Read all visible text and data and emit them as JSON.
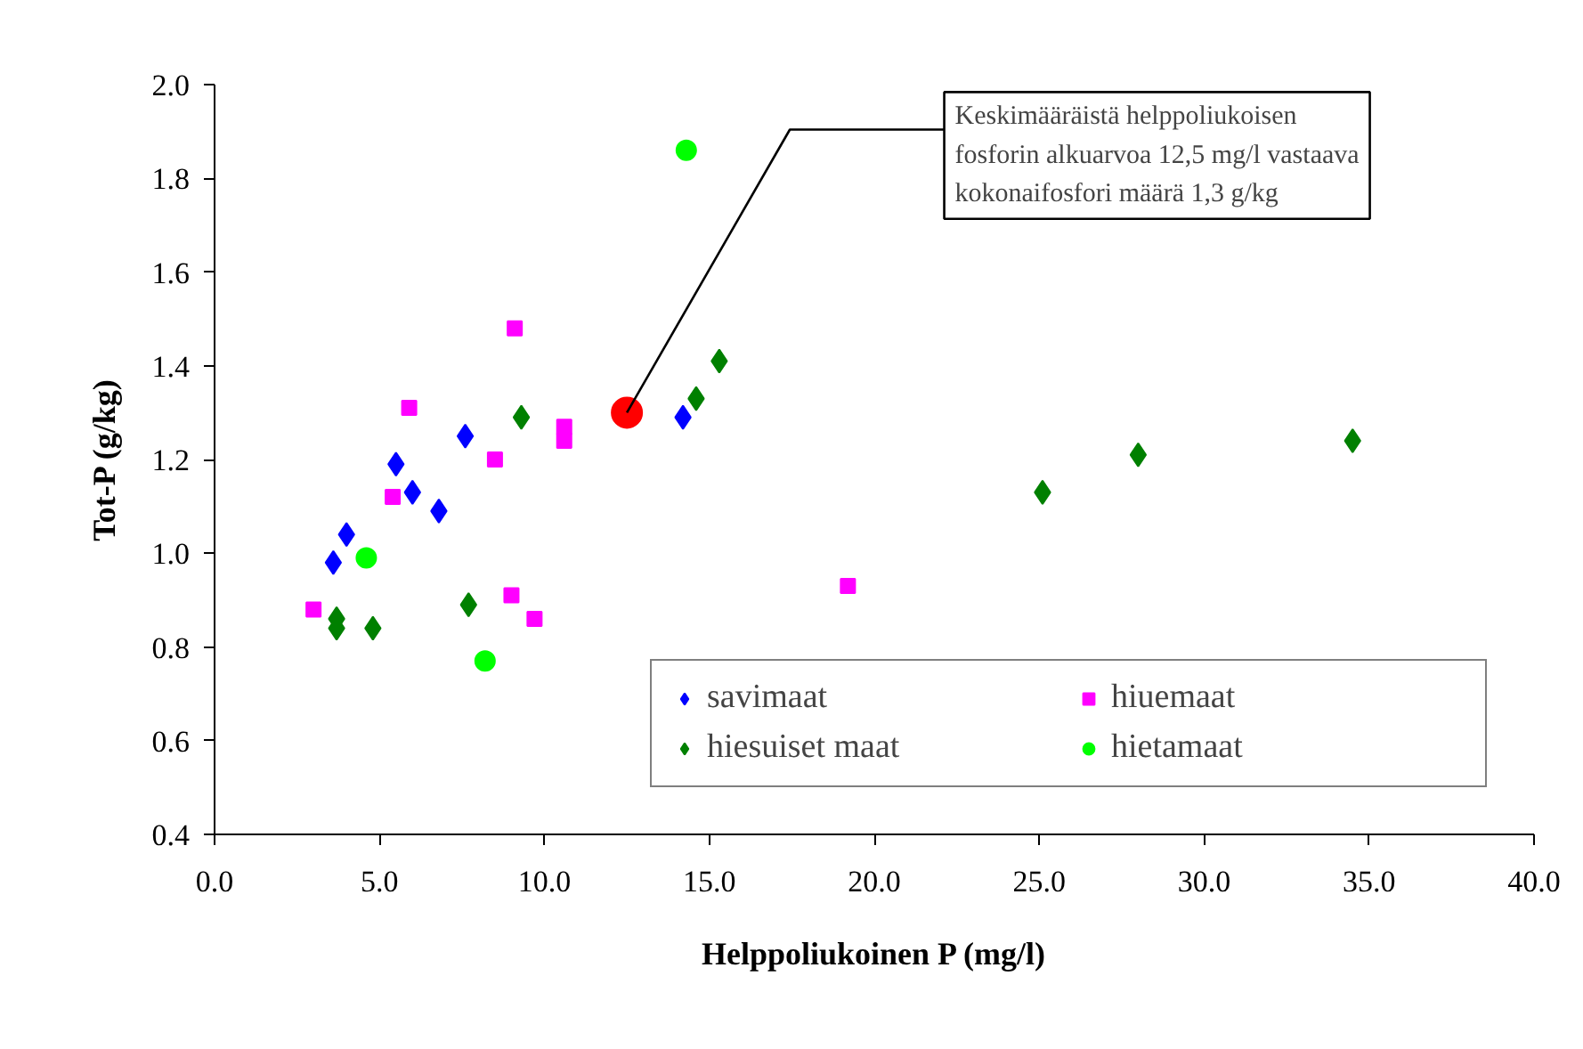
{
  "chart_data": {
    "type": "scatter",
    "xlabel": "Helppoliukoinen P (mg/l)",
    "ylabel": "Tot-P (g/kg)",
    "xlim": [
      0,
      40
    ],
    "xticks": [
      {
        "value": 0,
        "label": "0.0"
      },
      {
        "value": 5,
        "label": "5.0"
      },
      {
        "value": 10,
        "label": "10.0"
      },
      {
        "value": 15,
        "label": "15.0"
      },
      {
        "value": 20,
        "label": "20.0"
      },
      {
        "value": 25,
        "label": "25.0"
      },
      {
        "value": 30,
        "label": "30.0"
      },
      {
        "value": 35,
        "label": "35.0"
      },
      {
        "value": 40,
        "label": "40.0"
      }
    ],
    "ylim": [
      0.4,
      2.0
    ],
    "yticks": [
      {
        "value": 0.4,
        "label": "0.4"
      },
      {
        "value": 0.6,
        "label": "0.6"
      },
      {
        "value": 0.8,
        "label": "0.8"
      },
      {
        "value": 1.0,
        "label": "1.0"
      },
      {
        "value": 1.2,
        "label": "1.2"
      },
      {
        "value": 1.4,
        "label": "1.4"
      },
      {
        "value": 1.6,
        "label": "1.6"
      },
      {
        "value": 1.8,
        "label": "1.8"
      },
      {
        "value": 2.0,
        "label": "2.0"
      }
    ],
    "grid": false,
    "legend": "bottom right",
    "series": [
      {
        "name": "savimaat",
        "color": "#0000ff",
        "marker": "diamond",
        "x": [
          7.6,
          5.5,
          6.0,
          6.8,
          4.0,
          3.6,
          14.2
        ],
        "values": [
          1.25,
          1.19,
          1.13,
          1.09,
          1.04,
          0.98,
          1.29
        ]
      },
      {
        "name": "hiuemaat",
        "color": "#ff00ff",
        "marker": "square",
        "x": [
          9.1,
          5.9,
          8.5,
          10.6,
          10.6,
          5.4,
          3.0,
          9.0,
          9.7,
          19.2
        ],
        "values": [
          1.48,
          1.31,
          1.2,
          1.27,
          1.24,
          1.12,
          0.88,
          0.91,
          0.86,
          0.93
        ]
      },
      {
        "name": "hiesuiset maat",
        "color": "#008000",
        "marker": "diamond",
        "x": [
          9.3,
          3.7,
          3.7,
          4.8,
          7.7,
          14.6,
          15.3,
          25.1,
          28.0,
          34.5
        ],
        "values": [
          1.29,
          0.86,
          0.84,
          0.84,
          0.89,
          1.33,
          1.41,
          1.13,
          1.21,
          1.24
        ]
      },
      {
        "name": "hietamaat",
        "color": "#00ff00",
        "marker": "circle",
        "x": [
          4.6,
          8.2,
          14.3
        ],
        "values": [
          0.99,
          0.77,
          1.86
        ]
      },
      {
        "color": "#ff0000",
        "marker": "circle",
        "x": [
          12.5
        ],
        "values": [
          1.3
        ]
      }
    ],
    "annotations": [
      {
        "text": "Keskimääräistä helppoliukoisen\nfosforin alkuarvoa 12,5 mg/l vastaava\nkokonaifosfori määrä 1,3 g/kg",
        "x": 12.5,
        "y": 1.3
      }
    ]
  }
}
